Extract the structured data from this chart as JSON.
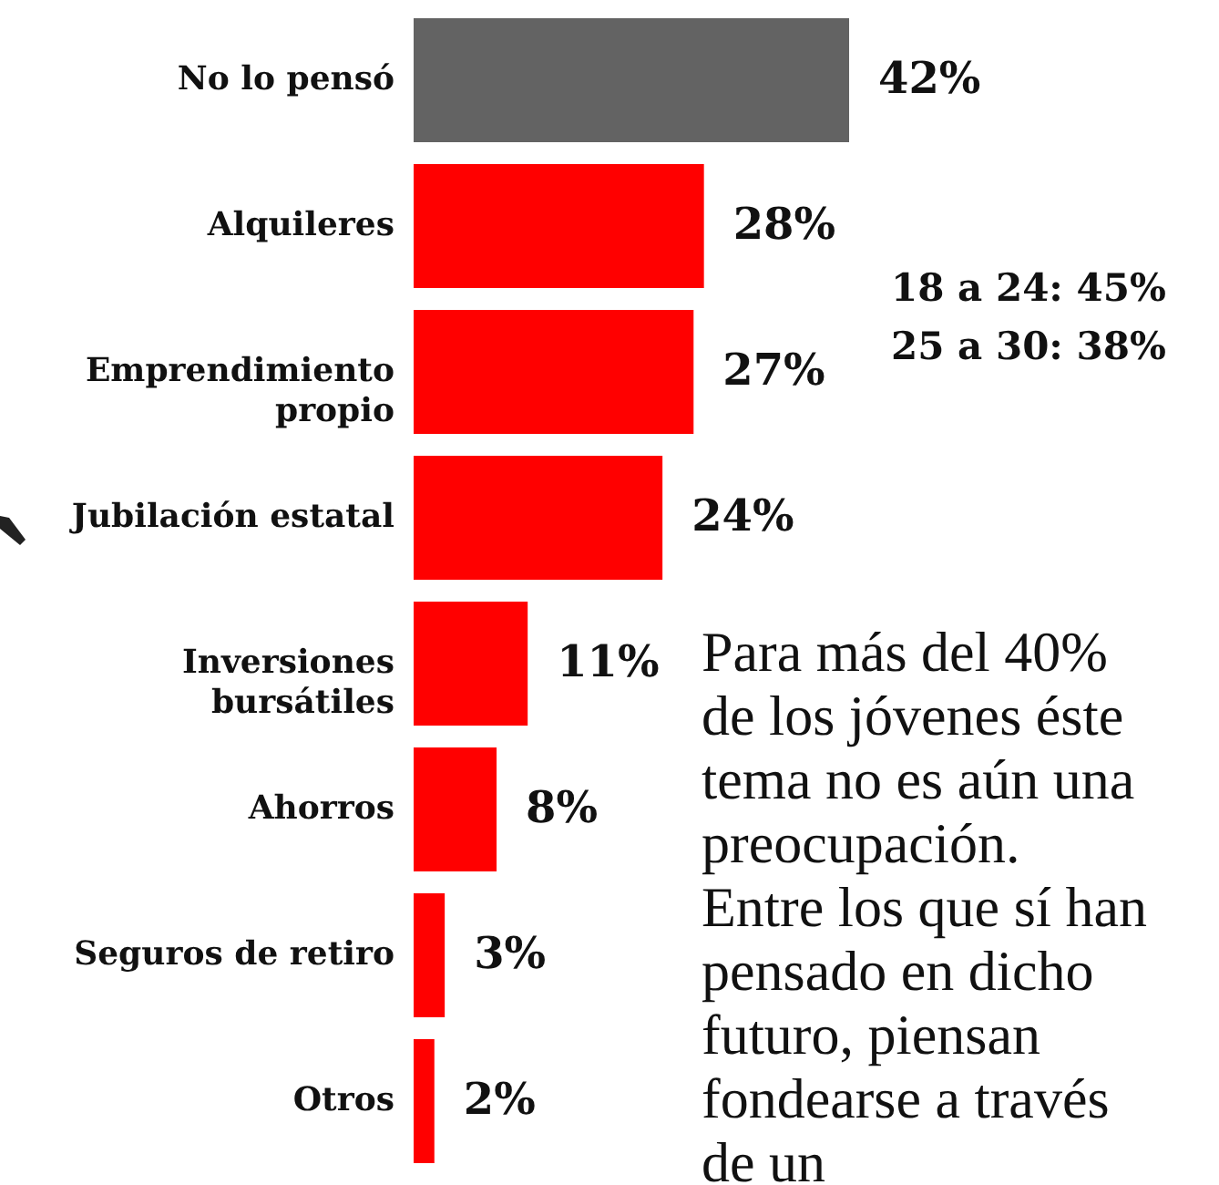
{
  "chart_data": {
    "type": "bar",
    "orientation": "horizontal",
    "categories": [
      "No lo pensó",
      "Alquileres",
      "Emprendimiento propio",
      "Jubilación estatal",
      "Inversiones bursátiles",
      "Ahorros",
      "Seguros de retiro",
      "Otros"
    ],
    "values": [
      42,
      28,
      27,
      24,
      11,
      8,
      3,
      2
    ],
    "colors": [
      "#636363",
      "#ff0000",
      "#ff0000",
      "#ff0000",
      "#ff0000",
      "#ff0000",
      "#ff0000",
      "#ff0000"
    ],
    "value_labels": [
      "42%",
      "28%",
      "27%",
      "24%",
      "11%",
      "8%",
      "3%",
      "2%"
    ],
    "annotations": [
      "18 a 24: 45%",
      "25 a 30: 38%",
      "Para más del  40% de los jóvenes éste tema no es aún una preocupación.",
      "Entre los que sí han pensado en dicho futuro, piensan fondearse a través de un"
    ]
  }
}
